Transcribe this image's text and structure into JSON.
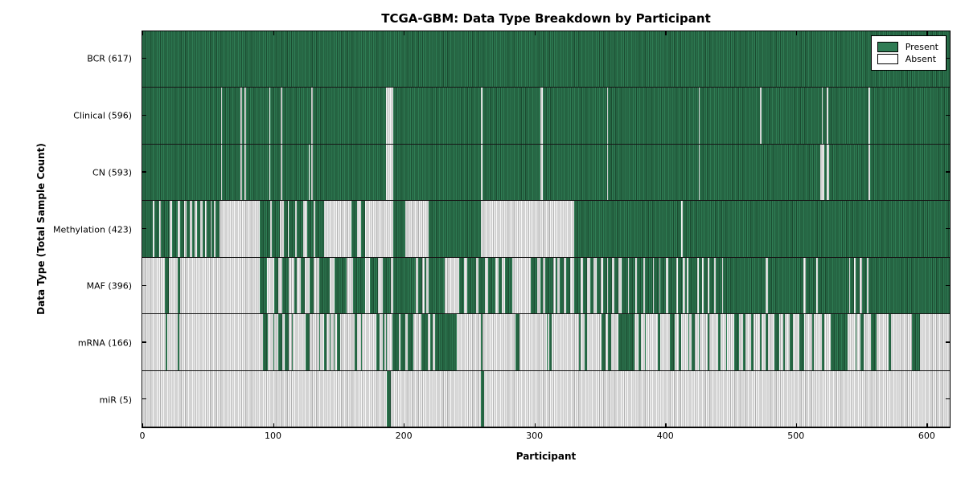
{
  "title": "TCGA-GBM: Data Type Breakdown by Participant",
  "axes": {
    "x_label": "Participant",
    "y_label": "Data Type (Total Sample Count)"
  },
  "legend": {
    "entries": [
      {
        "name": "present",
        "label": "Present",
        "color": "#2f7c54"
      },
      {
        "name": "absent",
        "label": "Absent",
        "color": "#ffffff"
      }
    ]
  },
  "chart_data": {
    "type": "heatmap",
    "title": "TCGA-GBM: Data Type Breakdown by Participant",
    "xlabel": "Participant",
    "ylabel": "Data Type (Total Sample Count)",
    "legend_position": "upper right",
    "grid": false,
    "n_participants": 617,
    "xlim": [
      0,
      617
    ],
    "x_ticks": [
      0,
      100,
      200,
      300,
      400,
      500,
      600
    ],
    "colors": {
      "present": "#2f7c54",
      "present_stripe": "#1b4c31",
      "absent": "#f6f6f6",
      "absent_stripe": "#b0b0b0"
    },
    "value_encoding": "present_ranges are [start,end) participant index intervals where the data type is Present (green); all other participants are Absent (white)",
    "rows": [
      {
        "name": "BCR",
        "label": "BCR (617)",
        "total": 617,
        "present_ranges": [
          [
            0,
            617
          ]
        ]
      },
      {
        "name": "Clinical",
        "label": "Clinical (596)",
        "total": 596,
        "present_ranges": [
          [
            0,
            60
          ],
          [
            61,
            75
          ],
          [
            76,
            78
          ],
          [
            79,
            97
          ],
          [
            98,
            106
          ],
          [
            107,
            129
          ],
          [
            130,
            186
          ],
          [
            192,
            259
          ],
          [
            260,
            304
          ],
          [
            306,
            355
          ],
          [
            356,
            425
          ],
          [
            426,
            472
          ],
          [
            473,
            519
          ],
          [
            520,
            523
          ],
          [
            524,
            555
          ],
          [
            556,
            617
          ]
        ]
      },
      {
        "name": "CN",
        "label": "CN (593)",
        "total": 593,
        "present_ranges": [
          [
            0,
            60
          ],
          [
            61,
            75
          ],
          [
            76,
            78
          ],
          [
            79,
            97
          ],
          [
            98,
            106
          ],
          [
            107,
            127
          ],
          [
            128,
            129
          ],
          [
            130,
            186
          ],
          [
            192,
            259
          ],
          [
            260,
            304
          ],
          [
            306,
            355
          ],
          [
            356,
            425
          ],
          [
            426,
            518
          ],
          [
            521,
            523
          ],
          [
            525,
            555
          ],
          [
            556,
            617
          ]
        ]
      },
      {
        "name": "Methylation",
        "label": "Methylation (423)",
        "total": 423,
        "present_ranges": [
          [
            0,
            8
          ],
          [
            9,
            13
          ],
          [
            14,
            21
          ],
          [
            23,
            27
          ],
          [
            29,
            32
          ],
          [
            34,
            36
          ],
          [
            38,
            40
          ],
          [
            42,
            44
          ],
          [
            46,
            48
          ],
          [
            49,
            52
          ],
          [
            53,
            55
          ],
          [
            56,
            59
          ],
          [
            90,
            98
          ],
          [
            99,
            105
          ],
          [
            108,
            111
          ],
          [
            112,
            117
          ],
          [
            118,
            123
          ],
          [
            126,
            131
          ],
          [
            132,
            139
          ],
          [
            160,
            164
          ],
          [
            167,
            170
          ],
          [
            192,
            201
          ],
          [
            219,
            259
          ],
          [
            330,
            412
          ],
          [
            413,
            617
          ]
        ]
      },
      {
        "name": "MAF",
        "label": "MAF (396)",
        "total": 396,
        "present_ranges": [
          [
            17,
            20
          ],
          [
            27,
            29
          ],
          [
            90,
            95
          ],
          [
            101,
            104
          ],
          [
            107,
            112
          ],
          [
            116,
            118
          ],
          [
            121,
            124
          ],
          [
            128,
            131
          ],
          [
            135,
            143
          ],
          [
            147,
            156
          ],
          [
            161,
            170
          ],
          [
            174,
            180
          ],
          [
            184,
            190
          ],
          [
            192,
            209
          ],
          [
            211,
            214
          ],
          [
            216,
            217
          ],
          [
            219,
            231
          ],
          [
            242,
            246
          ],
          [
            248,
            255
          ],
          [
            257,
            262
          ],
          [
            264,
            270
          ],
          [
            272,
            275
          ],
          [
            277,
            283
          ],
          [
            297,
            302
          ],
          [
            304,
            306
          ],
          [
            308,
            314
          ],
          [
            316,
            317
          ],
          [
            319,
            322
          ],
          [
            324,
            327
          ],
          [
            330,
            335
          ],
          [
            337,
            340
          ],
          [
            342,
            345
          ],
          [
            347,
            350
          ],
          [
            352,
            355
          ],
          [
            356,
            359
          ],
          [
            361,
            364
          ],
          [
            366,
            371
          ],
          [
            372,
            377
          ],
          [
            378,
            383
          ],
          [
            384,
            390
          ],
          [
            391,
            395
          ],
          [
            396,
            400
          ],
          [
            402,
            408
          ],
          [
            409,
            413
          ],
          [
            415,
            416
          ],
          [
            417,
            424
          ],
          [
            425,
            428
          ],
          [
            429,
            432
          ],
          [
            433,
            437
          ],
          [
            438,
            443
          ],
          [
            444,
            476
          ],
          [
            478,
            505
          ],
          [
            507,
            515
          ],
          [
            516,
            540
          ],
          [
            541,
            544
          ],
          [
            545,
            548
          ],
          [
            550,
            554
          ],
          [
            555,
            617
          ]
        ]
      },
      {
        "name": "mRNA",
        "label": "mRNA (166)",
        "total": 166,
        "present_ranges": [
          [
            18,
            19
          ],
          [
            27,
            28
          ],
          [
            92,
            96
          ],
          [
            100,
            101
          ],
          [
            104,
            107
          ],
          [
            109,
            112
          ],
          [
            114,
            115
          ],
          [
            125,
            128
          ],
          [
            135,
            136
          ],
          [
            139,
            141
          ],
          [
            143,
            144
          ],
          [
            146,
            147
          ],
          [
            149,
            151
          ],
          [
            162,
            164
          ],
          [
            167,
            168
          ],
          [
            179,
            181
          ],
          [
            184,
            185
          ],
          [
            186,
            187
          ],
          [
            191,
            196
          ],
          [
            197,
            201
          ],
          [
            203,
            207
          ],
          [
            213,
            218
          ],
          [
            220,
            222
          ],
          [
            224,
            240
          ],
          [
            259,
            260
          ],
          [
            285,
            288
          ],
          [
            309,
            310
          ],
          [
            311,
            313
          ],
          [
            334,
            335
          ],
          [
            338,
            340
          ],
          [
            351,
            354
          ],
          [
            356,
            358
          ],
          [
            364,
            376
          ],
          [
            379,
            381
          ],
          [
            384,
            385
          ],
          [
            394,
            396
          ],
          [
            403,
            407
          ],
          [
            410,
            412
          ],
          [
            417,
            418
          ],
          [
            420,
            422
          ],
          [
            425,
            426
          ],
          [
            432,
            433
          ],
          [
            440,
            442
          ],
          [
            446,
            447
          ],
          [
            452,
            456
          ],
          [
            459,
            461
          ],
          [
            465,
            467
          ],
          [
            472,
            473
          ],
          [
            476,
            478
          ],
          [
            483,
            487
          ],
          [
            490,
            491
          ],
          [
            495,
            497
          ],
          [
            502,
            506
          ],
          [
            512,
            513
          ],
          [
            519,
            521
          ],
          [
            526,
            539
          ],
          [
            545,
            546
          ],
          [
            549,
            551
          ],
          [
            557,
            561
          ],
          [
            570,
            572
          ],
          [
            588,
            594
          ]
        ]
      },
      {
        "name": "miR",
        "label": "miR (5)",
        "total": 5,
        "present_ranges": [
          [
            187,
            190
          ],
          [
            259,
            261
          ]
        ]
      }
    ]
  }
}
